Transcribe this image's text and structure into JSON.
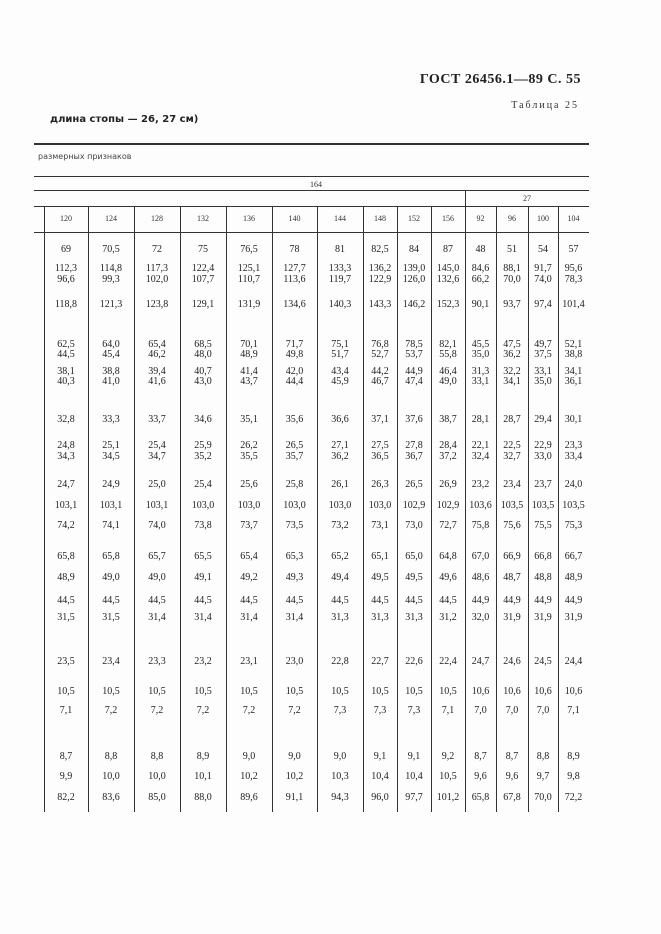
{
  "header": {
    "standard": "ГОСТ 26456.1—89  С. 55",
    "table_label": "Таблица 25",
    "subtitle": "длина стопы — 26, 27 см)",
    "section_label": "размерных признаков"
  },
  "table": {
    "group_top": "164",
    "group_right": "27",
    "columns": [
      "120",
      "124",
      "128",
      "132",
      "136",
      "140",
      "144",
      "148",
      "152",
      "156",
      "92",
      "96",
      "100",
      "104"
    ],
    "rows": [
      [
        "69",
        "70,5",
        "72",
        "75",
        "76,5",
        "78",
        "81",
        "82,5",
        "84",
        "87",
        "48",
        "51",
        "54",
        "57"
      ],
      [
        "112,3",
        "114,8",
        "117,3",
        "122,4",
        "125,1",
        "127,7",
        "133,3",
        "136,2",
        "139,0",
        "145,0",
        "84,6",
        "88,1",
        "91,7",
        "95,6"
      ],
      [
        "96,6",
        "99,3",
        "102,0",
        "107,7",
        "110,7",
        "113,6",
        "119,7",
        "122,9",
        "126,0",
        "132,6",
        "66,2",
        "70,0",
        "74,0",
        "78,3"
      ],
      [
        "118,8",
        "121,3",
        "123,8",
        "129,1",
        "131,9",
        "134,6",
        "140,3",
        "143,3",
        "146,2",
        "152,3",
        "90,1",
        "93,7",
        "97,4",
        "101,4"
      ],
      [
        "62,5",
        "64,0",
        "65,4",
        "68,5",
        "70,1",
        "71,7",
        "75,1",
        "76,8",
        "78,5",
        "82,1",
        "45,5",
        "47,5",
        "49,7",
        "52,1"
      ],
      [
        "44,5",
        "45,4",
        "46,2",
        "48,0",
        "48,9",
        "49,8",
        "51,7",
        "52,7",
        "53,7",
        "55,8",
        "35,0",
        "36,2",
        "37,5",
        "38,8"
      ],
      [
        "38,1",
        "38,8",
        "39,4",
        "40,7",
        "41,4",
        "42,0",
        "43,4",
        "44,2",
        "44,9",
        "46,4",
        "31,3",
        "32,2",
        "33,1",
        "34,1"
      ],
      [
        "40,3",
        "41,0",
        "41,6",
        "43,0",
        "43,7",
        "44,4",
        "45,9",
        "46,7",
        "47,4",
        "49,0",
        "33,1",
        "34,1",
        "35,0",
        "36,1"
      ],
      [
        "32,8",
        "33,3",
        "33,7",
        "34,6",
        "35,1",
        "35,6",
        "36,6",
        "37,1",
        "37,6",
        "38,7",
        "28,1",
        "28,7",
        "29,4",
        "30,1"
      ],
      [
        "24,8",
        "25,1",
        "25,4",
        "25,9",
        "26,2",
        "26,5",
        "27,1",
        "27,5",
        "27,8",
        "28,4",
        "22,1",
        "22,5",
        "22,9",
        "23,3"
      ],
      [
        "34,3",
        "34,5",
        "34,7",
        "35,2",
        "35,5",
        "35,7",
        "36,2",
        "36,5",
        "36,7",
        "37,2",
        "32,4",
        "32,7",
        "33,0",
        "33,4"
      ],
      [
        "24,7",
        "24,9",
        "25,0",
        "25,4",
        "25,6",
        "25,8",
        "26,1",
        "26,3",
        "26,5",
        "26,9",
        "23,2",
        "23,4",
        "23,7",
        "24,0"
      ],
      [
        "103,1",
        "103,1",
        "103,1",
        "103,0",
        "103,0",
        "103,0",
        "103,0",
        "103,0",
        "102,9",
        "102,9",
        "103,6",
        "103,5",
        "103,5",
        "103,5"
      ],
      [
        "74,2",
        "74,1",
        "74,0",
        "73,8",
        "73,7",
        "73,5",
        "73,2",
        "73,1",
        "73,0",
        "72,7",
        "75,8",
        "75,6",
        "75,5",
        "75,3"
      ],
      [
        "65,8",
        "65,8",
        "65,7",
        "65,5",
        "65,4",
        "65,3",
        "65,2",
        "65,1",
        "65,0",
        "64,8",
        "67,0",
        "66,9",
        "66,8",
        "66,7"
      ],
      [
        "48,9",
        "49,0",
        "49,0",
        "49,1",
        "49,2",
        "49,3",
        "49,4",
        "49,5",
        "49,5",
        "49,6",
        "48,6",
        "48,7",
        "48,8",
        "48,9"
      ],
      [
        "44,5",
        "44,5",
        "44,5",
        "44,5",
        "44,5",
        "44,5",
        "44,5",
        "44,5",
        "44,5",
        "44,5",
        "44,9",
        "44,9",
        "44,9",
        "44,9"
      ],
      [
        "31,5",
        "31,5",
        "31,4",
        "31,4",
        "31,4",
        "31,4",
        "31,3",
        "31,3",
        "31,3",
        "31,2",
        "32,0",
        "31,9",
        "31,9",
        "31,9"
      ],
      [
        "23,5",
        "23,4",
        "23,3",
        "23,2",
        "23,1",
        "23,0",
        "22,8",
        "22,7",
        "22,6",
        "22,4",
        "24,7",
        "24,6",
        "24,5",
        "24,4"
      ],
      [
        "10,5",
        "10,5",
        "10,5",
        "10,5",
        "10,5",
        "10,5",
        "10,5",
        "10,5",
        "10,5",
        "10,5",
        "10,6",
        "10,6",
        "10,6",
        "10,6"
      ],
      [
        "7,1",
        "7,2",
        "7,2",
        "7,2",
        "7,2",
        "7,2",
        "7,3",
        "7,3",
        "7,3",
        "7,1",
        "7,0",
        "7,0",
        "7,0",
        "7,1"
      ],
      [
        "8,7",
        "8,8",
        "8,8",
        "8,9",
        "9,0",
        "9,0",
        "9,0",
        "9,1",
        "9,1",
        "9,2",
        "8,7",
        "8,7",
        "8,8",
        "8,9"
      ],
      [
        "9,9",
        "10,0",
        "10,0",
        "10,1",
        "10,2",
        "10,2",
        "10,3",
        "10,4",
        "10,4",
        "10,5",
        "9,6",
        "9,6",
        "9,7",
        "9,8"
      ],
      [
        "82,2",
        "83,6",
        "85,0",
        "88,0",
        "89,6",
        "91,1",
        "94,3",
        "96,0",
        "97,7",
        "101,2",
        "65,8",
        "67,8",
        "70,0",
        "72,2"
      ]
    ]
  }
}
